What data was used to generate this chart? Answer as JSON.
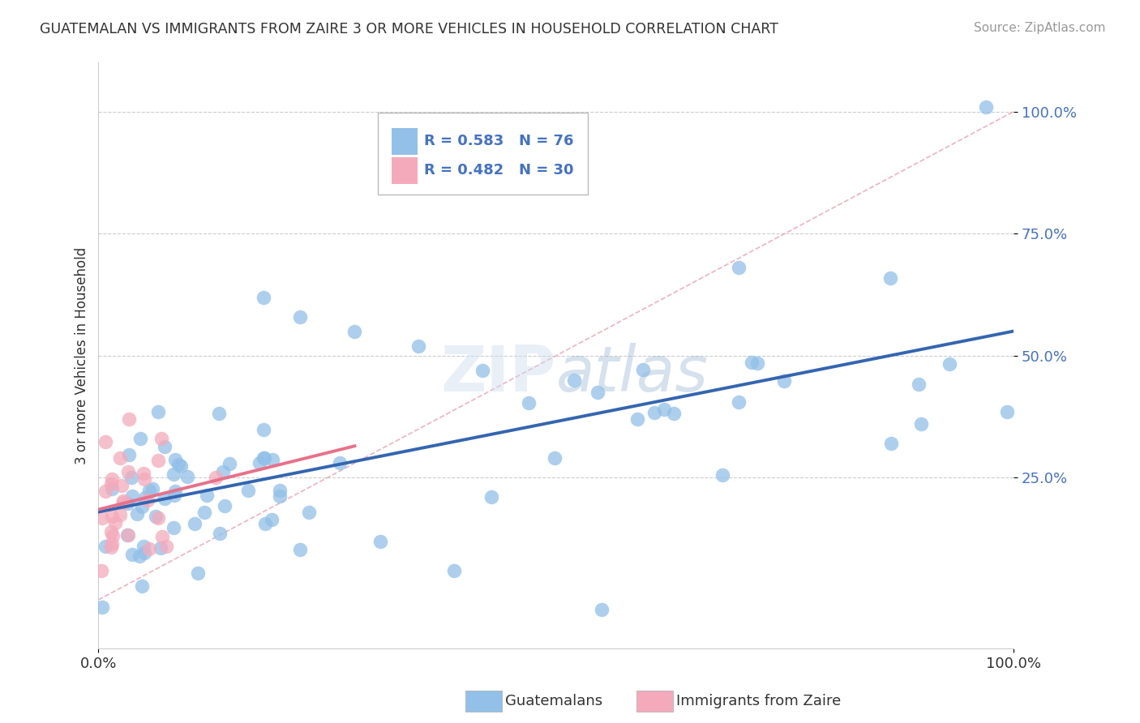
{
  "title": "GUATEMALAN VS IMMIGRANTS FROM ZAIRE 3 OR MORE VEHICLES IN HOUSEHOLD CORRELATION CHART",
  "source": "Source: ZipAtlas.com",
  "ylabel": "3 or more Vehicles in Household",
  "blue_color": "#92C0E8",
  "pink_color": "#F4AABB",
  "line_blue": "#3465B0",
  "line_pink": "#E8708A",
  "diag_line_color": "#E8A0B0",
  "grid_color": "#CCCCCC",
  "watermark_color": "#DDEEFF",
  "legend_R1": "R = 0.583",
  "legend_N1": "N = 76",
  "legend_R2": "R = 0.482",
  "legend_N2": "N = 30",
  "legend_label1": "Guatemalans",
  "legend_label2": "Immigrants from Zaire",
  "title_color": "#333333",
  "source_color": "#999999",
  "tick_color_blue": "#4472C4",
  "tick_color_dark": "#333333"
}
